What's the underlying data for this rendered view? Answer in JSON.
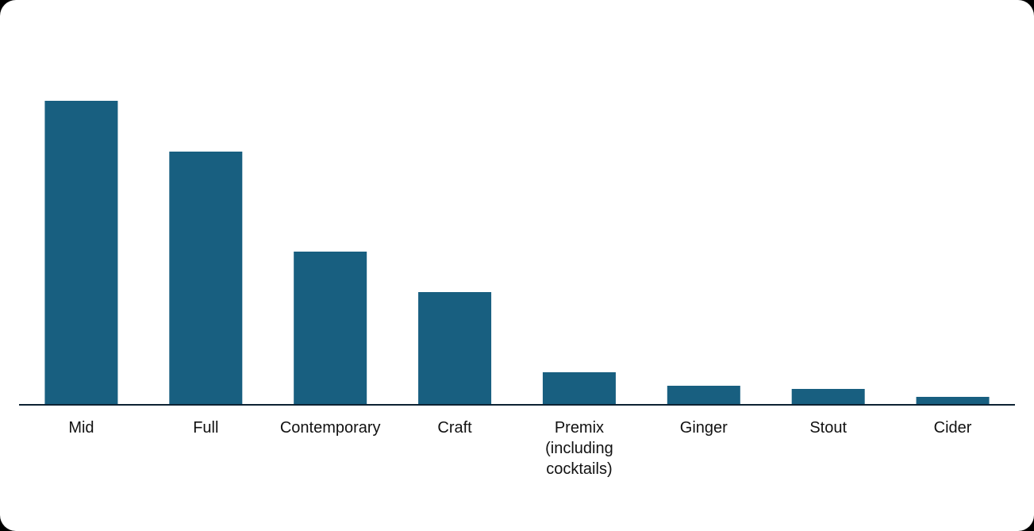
{
  "chart_data": {
    "type": "bar",
    "categories": [
      "Mid",
      "Full",
      "Contemporary",
      "Craft",
      "Premix (including cocktails)",
      "Ginger",
      "Stout",
      "Cider"
    ],
    "values": [
      383,
      319,
      193,
      142,
      41,
      24,
      20,
      10
    ],
    "color": "#185f80",
    "ylim": [
      0,
      400
    ]
  }
}
